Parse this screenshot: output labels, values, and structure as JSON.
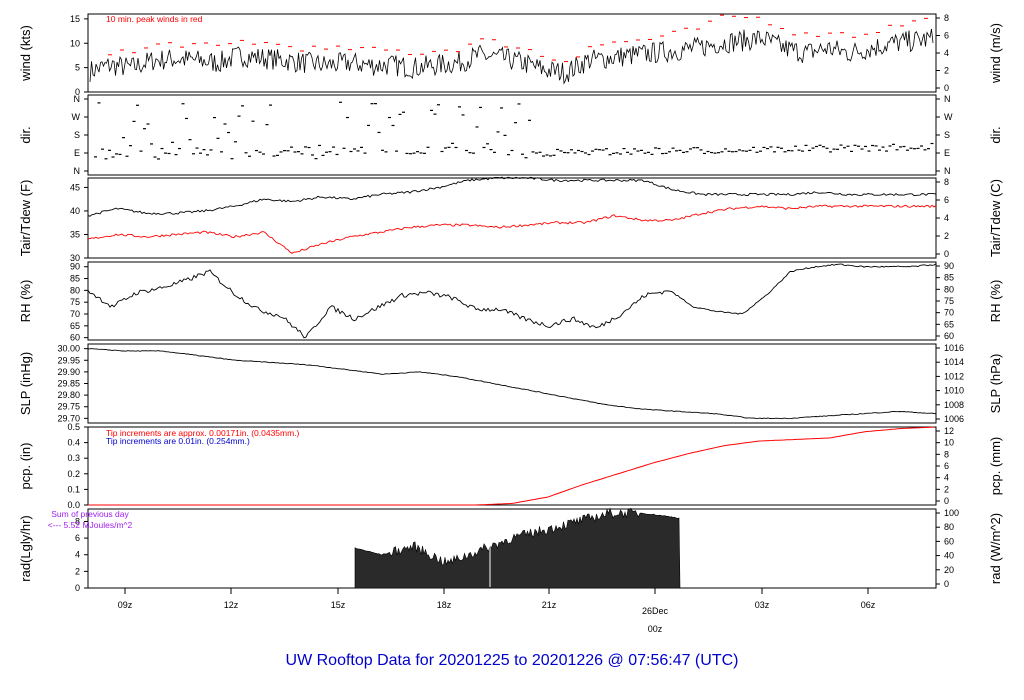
{
  "colors": {
    "red": "#ff0000",
    "blue": "#0000cc",
    "purple": "#a020f0",
    "black": "#000000",
    "fill": "#2a2a2a"
  },
  "title": "UW Rooftop Data for 20201225  to  20201226 @ 07:56:47  (UTC)",
  "time_ticks": [
    "09z",
    "12z",
    "15z",
    "18z",
    "21z",
    "26Dec",
    "00z",
    "03z",
    "06z"
  ],
  "chart_data": [
    {
      "type": "line",
      "ylabel_left": "wind (kts)",
      "ylabel_right": "wind (m/s)",
      "yticks_left": [
        "0",
        "5",
        "10",
        "15"
      ],
      "yticks_right": [
        "0",
        "2",
        "4",
        "6",
        "8"
      ],
      "ylim": [
        0,
        16
      ],
      "annotation": "10 min. peak winds in red",
      "series": [
        {
          "name": "",
          "values": [
            4.2,
            5.5,
            5,
            6.5,
            6.8,
            6.5,
            6,
            7.5,
            7,
            6.5,
            6,
            5.5,
            6,
            5.5,
            5.5,
            5,
            5.5,
            6,
            7.5,
            7,
            6,
            4.5,
            4,
            6.5,
            7,
            7.5,
            8,
            8.5,
            9,
            10,
            10.5,
            11,
            9,
            8,
            9,
            8,
            9,
            10,
            10.5,
            11
          ]
        },
        {
          "name": "",
          "values": [
            6.5,
            8.5,
            8,
            9.5,
            10,
            9.5,
            9,
            10.5,
            10,
            9.5,
            9,
            8.5,
            9,
            8.5,
            8.5,
            8,
            8.5,
            9,
            10.5,
            10,
            9,
            7,
            6.5,
            9.5,
            10,
            10.5,
            11,
            12,
            13,
            15,
            15.5,
            15,
            13,
            11.5,
            12.5,
            11.5,
            12.5,
            13.5,
            14.5,
            15
          ]
        }
      ]
    },
    {
      "type": "scatter",
      "ylabel_left": "dir.",
      "ylabel_right": "dir.",
      "yticks_left": [
        "N",
        "E",
        "S",
        "W",
        "N"
      ],
      "yticks_right": [
        "N",
        "E",
        "S",
        "W",
        "N"
      ]
    },
    {
      "type": "line",
      "ylabel_left": "Tair/Tdew (F)",
      "ylabel_right": "Tair/Tdew (C)",
      "yticks_left": [
        "30",
        "35",
        "40",
        "45"
      ],
      "yticks_right": [
        "0",
        "2",
        "4",
        "6",
        "8"
      ],
      "ylim": [
        30,
        47
      ],
      "series": [
        {
          "name": "",
          "values": [
            39,
            40.5,
            39.5,
            39.5,
            40,
            41,
            42.5,
            42,
            43,
            42.5,
            43.5,
            44,
            45,
            46.5,
            47,
            47,
            46.5,
            46.5,
            46.5,
            46.5,
            44.5,
            43.5,
            43.5,
            43.5,
            43.5,
            44,
            43.5,
            43.5,
            43.5,
            43.5
          ]
        },
        {
          "name": "",
          "values": [
            34,
            35,
            34.5,
            35,
            35.5,
            34.5,
            35.5,
            31,
            33,
            34.5,
            35.5,
            36.5,
            37,
            37,
            36.5,
            37,
            37.5,
            37.5,
            39,
            38,
            38,
            39.5,
            40.5,
            41,
            40.5,
            41,
            41,
            41,
            41,
            41
          ]
        }
      ]
    },
    {
      "type": "line",
      "ylabel_left": "RH (%)",
      "ylabel_right": "RH (%)",
      "yticks_left": [
        "60",
        "65",
        "70",
        "75",
        "80",
        "85",
        "90"
      ],
      "yticks_right": [
        "60",
        "65",
        "70",
        "75",
        "80",
        "85",
        "90"
      ],
      "ylim": [
        59,
        92
      ],
      "series": [
        {
          "name": "",
          "values": [
            80,
            73,
            79,
            81,
            84,
            88,
            79,
            72,
            69,
            60,
            73,
            68,
            73,
            78,
            79,
            77,
            72,
            72,
            68,
            65,
            68,
            64,
            70,
            78,
            80,
            73,
            71,
            70,
            78,
            88,
            90,
            91,
            90,
            90,
            90,
            91
          ]
        }
      ]
    },
    {
      "type": "line",
      "ylabel_left": "SLP (inHg)",
      "ylabel_right": "SLP (hPa)",
      "yticks_left": [
        "29.70",
        "29.75",
        "29.80",
        "29.85",
        "29.90",
        "29.95",
        "30.00"
      ],
      "yticks_right": [
        "1006",
        "1008",
        "1010",
        "1012",
        "1014",
        "1016"
      ],
      "ylim": [
        29.68,
        30.02
      ],
      "series": [
        {
          "name": "",
          "values": [
            30.0,
            29.99,
            29.99,
            29.97,
            29.95,
            29.94,
            29.93,
            29.91,
            29.89,
            29.9,
            29.88,
            29.85,
            29.82,
            29.79,
            29.76,
            29.74,
            29.73,
            29.72,
            29.7,
            29.7,
            29.71,
            29.72,
            29.73,
            29.72
          ]
        }
      ]
    },
    {
      "type": "line",
      "ylabel_left": "pcp. (in)",
      "ylabel_right": "pcp. (mm)",
      "yticks_left": [
        "0.0",
        "0.1",
        "0.2",
        "0.3",
        "0.4",
        "0.5"
      ],
      "yticks_right": [
        "0",
        "2",
        "4",
        "6",
        "8",
        "10",
        "12"
      ],
      "ylim": [
        0,
        0.5
      ],
      "notes": [
        "Tip increments are approx. 0.00171in. (0.0435mm.)",
        "Tip increments are 0.01in.  (0.254mm.)"
      ],
      "series": [
        {
          "name": "",
          "values": [
            0,
            0,
            0,
            0,
            0,
            0,
            0,
            0,
            0,
            0,
            0,
            0,
            0.01,
            0.05,
            0.13,
            0.2,
            0.27,
            0.33,
            0.38,
            0.41,
            0.42,
            0.43,
            0.47,
            0.49,
            0.5
          ]
        }
      ]
    },
    {
      "type": "area",
      "ylabel_left": "rad(Lgly/hr)",
      "ylabel_right": "rad (W/m^2)",
      "yticks_left": [
        "0",
        "2",
        "4",
        "6",
        "8"
      ],
      "yticks_right": [
        "0",
        "20",
        "40",
        "60",
        "80",
        "100"
      ],
      "ylim": [
        0,
        9.5
      ],
      "notes": [
        "Sum of previous day",
        "<--- 5.52 MJoules/m^2"
      ],
      "series": [
        {
          "name": "",
          "values": [
            0,
            0,
            0,
            0.5,
            2,
            4,
            5.5,
            4,
            5,
            4,
            5,
            3,
            4.5,
            6,
            7,
            8,
            9,
            9,
            8.5,
            7.5,
            5,
            4,
            2,
            1,
            0.3,
            0,
            0
          ]
        }
      ]
    }
  ]
}
